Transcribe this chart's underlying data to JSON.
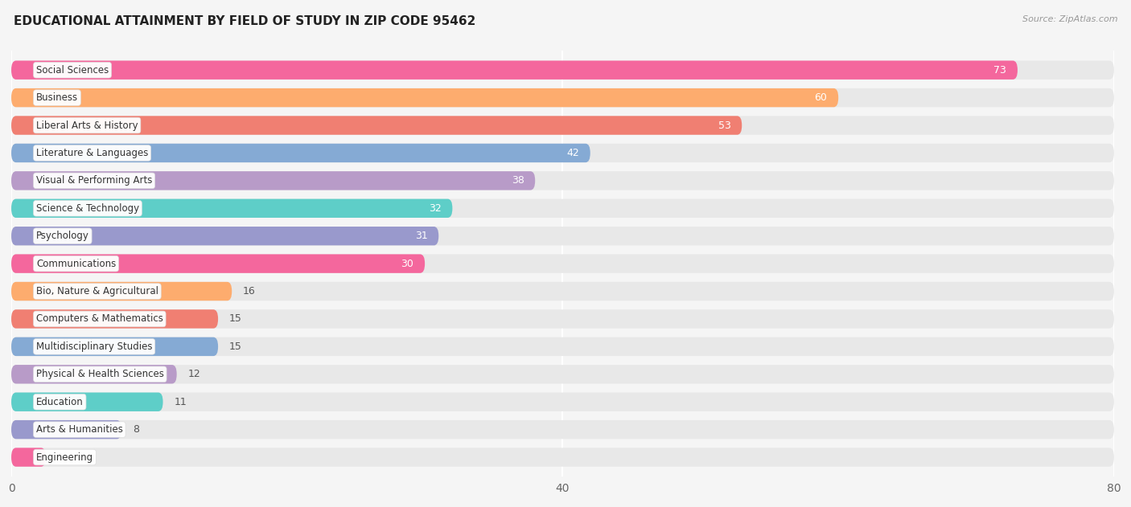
{
  "title": "EDUCATIONAL ATTAINMENT BY FIELD OF STUDY IN ZIP CODE 95462",
  "source": "Source: ZipAtlas.com",
  "categories": [
    "Social Sciences",
    "Business",
    "Liberal Arts & History",
    "Literature & Languages",
    "Visual & Performing Arts",
    "Science & Technology",
    "Psychology",
    "Communications",
    "Bio, Nature & Agricultural",
    "Computers & Mathematics",
    "Multidisciplinary Studies",
    "Physical & Health Sciences",
    "Education",
    "Arts & Humanities",
    "Engineering"
  ],
  "values": [
    73,
    60,
    53,
    42,
    38,
    32,
    31,
    30,
    16,
    15,
    15,
    12,
    11,
    8,
    0
  ],
  "bar_colors": [
    "#F4679D",
    "#FDAC6E",
    "#F07F72",
    "#85AAD4",
    "#B89BC8",
    "#5ECEC8",
    "#9999CC",
    "#F4679D",
    "#FDAC6E",
    "#F07F72",
    "#85AAD4",
    "#B89BC8",
    "#5ECEC8",
    "#9999CC",
    "#F4679D"
  ],
  "xlim": [
    0,
    80
  ],
  "xticks": [
    0,
    40,
    80
  ],
  "background_color": "#f5f5f5",
  "bar_background_color": "#e8e8e8",
  "title_fontsize": 11,
  "label_fontsize": 8.5,
  "value_fontsize": 9
}
